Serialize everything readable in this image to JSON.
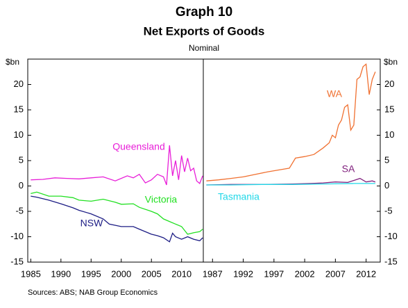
{
  "chart_data": [
    {
      "type": "line",
      "title": "Graph 10",
      "subtitle": "Net Exports of Goods",
      "note": "Nominal",
      "ylabel": "$bn",
      "source": "Sources: ABS; NAB Group Economics",
      "xlim": [
        1984.5,
        2013.6
      ],
      "xticks": [
        1985,
        1990,
        1995,
        2000,
        2005,
        2010
      ],
      "ylim": [
        -15,
        25
      ],
      "yticks": [
        -15,
        -10,
        -5,
        0,
        5,
        10,
        15,
        20
      ],
      "series": [
        {
          "name": "Queensland",
          "color": "#e81ed8",
          "x": [
            1985,
            1987,
            1989,
            1991,
            1993,
            1995,
            1997,
            1999,
            2001,
            2002,
            2003,
            2004,
            2005,
            2006,
            2007,
            2007.5,
            2008,
            2008.5,
            2009,
            2009.5,
            2010,
            2010.5,
            2011,
            2011.5,
            2012,
            2012.5,
            2013,
            2013.5
          ],
          "values": [
            1.2,
            1.3,
            1.6,
            1.5,
            1.4,
            1.6,
            1.8,
            1.0,
            2.0,
            1.6,
            2.3,
            0.6,
            1.2,
            2.3,
            1.8,
            0.2,
            8.0,
            2.0,
            5.0,
            1.2,
            6.0,
            2.8,
            5.5,
            3.0,
            3.5,
            1.0,
            0.5,
            2.0
          ]
        },
        {
          "name": "Victoria",
          "color": "#22e022",
          "x": [
            1985,
            1986,
            1988,
            1990,
            1992,
            1993,
            1995,
            1997,
            1999,
            2000,
            2002,
            2003,
            2005,
            2006,
            2007,
            2008,
            2009,
            2010,
            2011,
            2012,
            2013,
            2013.5
          ],
          "values": [
            -1.5,
            -1.2,
            -2.0,
            -2.0,
            -2.3,
            -2.8,
            -3.0,
            -2.6,
            -3.2,
            -3.6,
            -3.5,
            -4.2,
            -5.0,
            -5.5,
            -6.5,
            -7.0,
            -7.5,
            -8.0,
            -9.5,
            -9.2,
            -9.0,
            -8.5
          ]
        },
        {
          "name": "NSW",
          "color": "#1c1c84",
          "x": [
            1985,
            1986,
            1988,
            1990,
            1992,
            1993,
            1995,
            1997,
            1998,
            2000,
            2002,
            2003,
            2005,
            2006,
            2007,
            2008,
            2008.5,
            2009,
            2010,
            2011,
            2012,
            2013,
            2013.5
          ],
          "values": [
            -2.0,
            -2.2,
            -2.8,
            -3.5,
            -4.3,
            -4.8,
            -5.5,
            -6.5,
            -7.5,
            -8.0,
            -8.0,
            -8.5,
            -9.5,
            -9.8,
            -10.2,
            -11.0,
            -9.3,
            -10.0,
            -10.5,
            -10.0,
            -10.5,
            -10.8,
            -10.2
          ]
        }
      ]
    },
    {
      "type": "line",
      "ylabel": "$bn",
      "xlim": [
        1985.5,
        2014.3
      ],
      "xticks": [
        1987,
        1992,
        1997,
        2002,
        2007,
        2012
      ],
      "ylim": [
        -15,
        25
      ],
      "yticks": [
        -15,
        -10,
        -5,
        0,
        5,
        10,
        15,
        20
      ],
      "series": [
        {
          "name": "WA",
          "color": "#f07030",
          "x": [
            1986,
            1988,
            1990,
            1992,
            1994,
            1996,
            1998,
            1999.5,
            2000.5,
            2002,
            2003.5,
            2005,
            2006,
            2006.5,
            2007,
            2007.5,
            2008,
            2008.5,
            2009,
            2009.5,
            2010,
            2010.5,
            2011,
            2011.5,
            2012,
            2012.5,
            2013,
            2013.5
          ],
          "values": [
            1.0,
            1.2,
            1.5,
            1.8,
            2.3,
            2.8,
            3.2,
            3.5,
            5.5,
            5.8,
            6.2,
            7.5,
            8.5,
            10.0,
            9.5,
            12.0,
            13.0,
            15.5,
            16.0,
            11.0,
            12.0,
            21.0,
            21.5,
            23.5,
            24.0,
            18.0,
            21.0,
            22.5
          ]
        },
        {
          "name": "SA",
          "color": "#80207e",
          "x": [
            1986,
            1990,
            1995,
            2000,
            2003,
            2005,
            2007,
            2009,
            2011,
            2012,
            2013,
            2013.5
          ],
          "values": [
            0.2,
            0.3,
            0.3,
            0.4,
            0.5,
            0.6,
            0.8,
            0.7,
            1.5,
            0.8,
            1.0,
            0.8
          ]
        },
        {
          "name": "Tasmania",
          "color": "#22d8e8",
          "x": [
            1986,
            1990,
            1995,
            2000,
            2005,
            2010,
            2013.5
          ],
          "values": [
            0.2,
            0.2,
            0.3,
            0.3,
            0.4,
            0.5,
            0.5
          ]
        }
      ]
    }
  ]
}
